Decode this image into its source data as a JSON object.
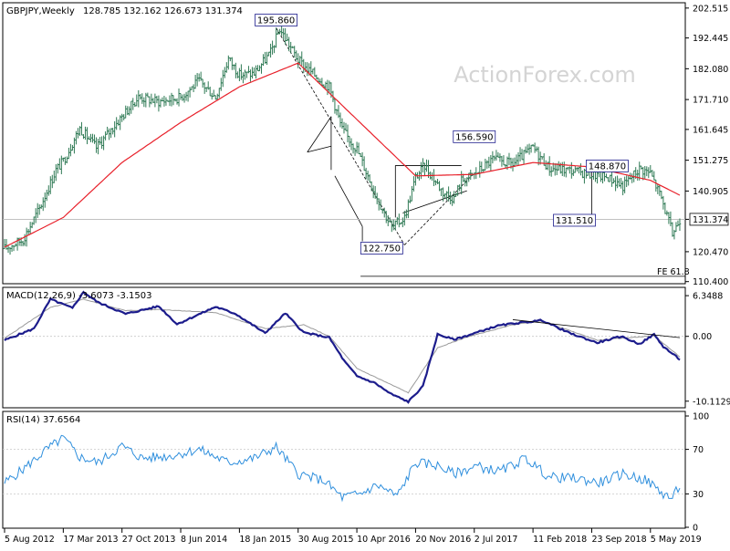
{
  "header": {
    "symbol": "GBPJPY,Weekly",
    "ohlc": "128.785 132.162 126.673 131.374"
  },
  "watermark": "ActionForex.com",
  "colors": {
    "price": "#2f7a55",
    "sma": "#e8202a",
    "macd": "#1c1c8c",
    "macd_signal": "#9a9a9a",
    "rsi": "#2f8fdd",
    "grid": "#c8c8c8",
    "text": "#000000",
    "label_border": "#1c1c8c"
  },
  "chart_data": [
    {
      "type": "line",
      "panel": "price",
      "ylim": [
        110.0,
        204.0
      ],
      "y_ticks": [
        "202.515",
        "192.445",
        "182.080",
        "171.710",
        "161.645",
        "151.275",
        "140.905",
        "131.374",
        "120.470",
        "110.400"
      ],
      "y_tick_values": [
        202.515,
        192.445,
        182.08,
        171.71,
        161.645,
        151.275,
        140.905,
        131.374,
        120.47,
        110.4
      ],
      "last_price": 131.374,
      "last_price_label": "131.374",
      "series": [
        {
          "kind": "close",
          "x": [
            "2012-08-05",
            "2012-10-14",
            "2012-12-16",
            "2013-02-17",
            "2013-03-17",
            "2013-05-19",
            "2013-07-21",
            "2013-10-27",
            "2013-12-29",
            "2014-03-16",
            "2014-06-08",
            "2014-08-17",
            "2014-10-19",
            "2014-12-07",
            "2015-01-18",
            "2015-03-15",
            "2015-05-17",
            "2015-06-21",
            "2015-08-30",
            "2015-10-04",
            "2015-12-27",
            "2016-02-14",
            "2016-04-10",
            "2016-06-19",
            "2016-08-21",
            "2016-10-09",
            "2016-11-20",
            "2016-12-25",
            "2017-03-05",
            "2017-04-16",
            "2017-05-14",
            "2017-07-02",
            "2017-09-10",
            "2017-11-26",
            "2018-02-11",
            "2018-04-15",
            "2018-06-24",
            "2018-09-23",
            "2018-11-25",
            "2019-01-20",
            "2019-03-24",
            "2019-05-05",
            "2019-06-16",
            "2019-07-28",
            "2019-08-25"
          ],
          "values": [
            121.5,
            124.5,
            135.0,
            148.0,
            151.0,
            162.0,
            155.5,
            166.0,
            172.5,
            171.0,
            172.5,
            178.0,
            172.5,
            185.5,
            180.0,
            180.5,
            187.5,
            195.5,
            185.0,
            182.0,
            176.0,
            161.5,
            155.0,
            140.0,
            128.5,
            132.0,
            145.5,
            149.5,
            140.5,
            138.5,
            144.5,
            146.5,
            151.5,
            150.0,
            155.5,
            148.5,
            148.0,
            146.5,
            145.5,
            142.5,
            148.5,
            147.0,
            138.5,
            126.5,
            131.4
          ]
        },
        {
          "kind": "sma",
          "x": [
            "2012-08-05",
            "2013-03-17",
            "2013-10-27",
            "2014-06-08",
            "2015-01-18",
            "2015-08-30",
            "2016-04-10",
            "2016-11-20",
            "2017-07-02",
            "2018-02-11",
            "2018-09-23",
            "2019-05-05",
            "2019-08-25"
          ],
          "values": [
            122.0,
            132.0,
            150.5,
            164.0,
            176.0,
            184.0,
            165.0,
            146.0,
            146.5,
            150.5,
            149.0,
            144.5,
            139.5
          ]
        }
      ],
      "annotations": [
        {
          "text": "195.860",
          "x": "2015-06-07",
          "value": 195.86
        },
        {
          "text": "122.750",
          "x": "2016-10-09",
          "value": 122.75
        },
        {
          "text": "156.590",
          "x": "2017-07-02",
          "value": 156.59
        },
        {
          "text": "148.870",
          "x": "2018-09-23",
          "value": 148.87
        },
        {
          "text": "131.510",
          "x": "2018-10-28",
          "value": 131.51
        },
        {
          "text": "FE 61.8",
          "x": "2019-05-05",
          "value": 112.2
        }
      ]
    },
    {
      "type": "line",
      "panel": "macd",
      "title": "MACD(12,26,9) -3.6073 -3.1503",
      "ylim": [
        -11.0,
        7.5
      ],
      "y_ticks": [
        "6.3488",
        "0.00",
        "-10.1129"
      ],
      "y_tick_values": [
        6.3488,
        0.0,
        -10.1129
      ],
      "series": [
        {
          "kind": "macd",
          "x": [
            "2012-08-05",
            "2012-11-25",
            "2013-01-27",
            "2013-04-21",
            "2013-06-02",
            "2013-07-28",
            "2013-11-10",
            "2014-03-16",
            "2014-05-25",
            "2014-10-19",
            "2015-01-04",
            "2015-04-26",
            "2015-07-12",
            "2015-09-20",
            "2015-12-27",
            "2016-02-21",
            "2016-04-10",
            "2016-06-19",
            "2016-08-14",
            "2016-10-23",
            "2016-12-18",
            "2017-02-12",
            "2017-04-16",
            "2017-06-04",
            "2017-09-24",
            "2017-11-26",
            "2018-03-18",
            "2018-07-01",
            "2018-10-14",
            "2019-01-13",
            "2019-03-24",
            "2019-05-19",
            "2019-06-23",
            "2019-08-25"
          ],
          "values": [
            -0.6,
            1.2,
            5.8,
            4.4,
            6.9,
            5.3,
            3.5,
            4.7,
            1.9,
            4.6,
            3.5,
            0.5,
            3.6,
            0.6,
            -0.2,
            -3.8,
            -6.2,
            -7.3,
            -8.9,
            -10.2,
            -7.8,
            0.3,
            -0.5,
            0.1,
            1.6,
            2.0,
            2.5,
            0.5,
            -1.0,
            0.0,
            -1.2,
            0.3,
            -1.6,
            -3.6
          ]
        },
        {
          "kind": "signal",
          "x": [
            "2012-08-05",
            "2013-01-27",
            "2013-06-02",
            "2013-11-10",
            "2014-03-16",
            "2014-10-19",
            "2015-04-26",
            "2015-09-20",
            "2015-12-27",
            "2016-04-10",
            "2016-10-23",
            "2017-02-12",
            "2017-06-04",
            "2017-11-26",
            "2018-03-18",
            "2018-10-14",
            "2019-01-13",
            "2019-05-19",
            "2019-08-25"
          ],
          "values": [
            -0.3,
            4.5,
            5.8,
            4.0,
            4.2,
            3.7,
            1.2,
            1.8,
            0.0,
            -5.0,
            -8.8,
            -1.8,
            -0.1,
            1.8,
            2.4,
            -0.6,
            -0.3,
            0.1,
            -3.2
          ]
        }
      ]
    },
    {
      "type": "line",
      "panel": "rsi",
      "title": "RSI(14) 37.6564",
      "ylim": [
        0,
        100
      ],
      "y_ticks": [
        "100",
        "70",
        "30",
        "0"
      ],
      "y_tick_values": [
        100,
        70,
        30,
        0
      ],
      "series": [
        {
          "kind": "rsi",
          "x": [
            "2012-08-05",
            "2012-10-14",
            "2013-01-13",
            "2013-03-17",
            "2013-05-19",
            "2013-07-28",
            "2013-10-27",
            "2014-01-12",
            "2014-04-27",
            "2014-08-17",
            "2014-12-07",
            "2015-03-15",
            "2015-06-07",
            "2015-08-30",
            "2015-12-06",
            "2016-02-14",
            "2016-04-24",
            "2016-06-26",
            "2016-09-11",
            "2016-11-20",
            "2017-02-05",
            "2017-04-16",
            "2017-07-09",
            "2017-10-08",
            "2018-01-14",
            "2018-04-15",
            "2018-07-22",
            "2018-10-21",
            "2019-01-20",
            "2019-04-21",
            "2019-06-23",
            "2019-07-28",
            "2019-08-25"
          ],
          "values": [
            40,
            52,
            70,
            80,
            63,
            58,
            73,
            62,
            64,
            70,
            58,
            62,
            72,
            48,
            42,
            27,
            30,
            38,
            28,
            58,
            56,
            48,
            55,
            50,
            62,
            45,
            44,
            40,
            48,
            42,
            30,
            26,
            37.7
          ]
        }
      ]
    }
  ],
  "x_axis": {
    "labels": [
      "5 Aug 2012",
      "17 Mar 2013",
      "27 Oct 2013",
      "8 Jun 2014",
      "18 Jan 2015",
      "30 Aug 2015",
      "10 Apr 2016",
      "20 Nov 2016",
      "2 Jul 2017",
      "11 Feb 2018",
      "23 Sep 2018",
      "5 May 2019"
    ],
    "dates": [
      "2012-08-05",
      "2013-03-17",
      "2013-10-27",
      "2014-06-08",
      "2015-01-18",
      "2015-08-30",
      "2016-04-10",
      "2016-11-20",
      "2017-07-02",
      "2018-02-11",
      "2018-09-23",
      "2019-05-05"
    ]
  }
}
